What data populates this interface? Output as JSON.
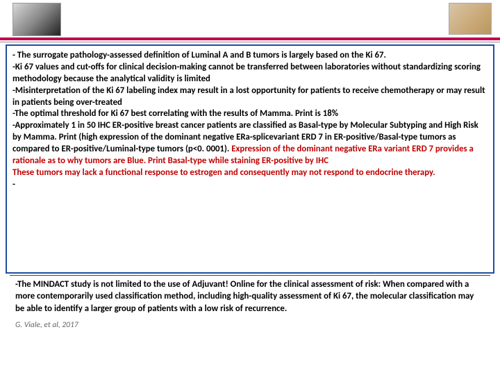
{
  "header": {
    "rule_color": "#c00050",
    "left_image_alt": "microscope-photo",
    "right_image_alt": "histology-slide"
  },
  "box1": {
    "p1": "- The surrogate pathology-assessed definition of Luminal A and B tumors is largely based on the Ki 67.",
    "p2": "-Ki 67 values and cut-offs for clinical decision-making cannot be transferred between laboratories without standardizing scoring methodology because the analytical validity is limited",
    "p3": "-Misinterpretation of the Ki 67 labeling index may result in a lost opportunity for patients to receive chemotherapy or may result in patients being over-treated",
    "p4": "-The optimal threshold for Ki 67 best  correlating with the results of Mamma. Print is 18%",
    "p5a": "-Approximately 1 in 50 IHC ER-positive breast cancer patients are classified as Basal-type by Molecular Subtyping and High Risk by Mamma. Print (high expression of the dominant negative ERa-splicevariant ERD 7 in ER-positive/Basal-type tumors as compared to ER-positive/Luminal-type tumors (p<0. 0001). ",
    "p5b": "Expression of the dominant negative ERa variant ERD 7 provides a rationale as to why tumors are Blue. Print Basal-type while staining ER-positive by IHC",
    "p6": "These tumors may lack a functional response to estrogen and consequently may not respond to endocrine therapy.",
    "p7": "-"
  },
  "box2": {
    "text": "-The MINDACT study is not limited to the use of Adjuvant! Online for the clinical assessment of risk: When compared with a more contemporarily used classification method, including high-quality assessment of Ki 67, the molecular classification may be able to identify a larger group of patients with a low risk of recurrence."
  },
  "citation": "G. Viale, et al, 2017",
  "style": {
    "body_font_size": 12.8,
    "font_weight": "bold",
    "text_color": "#000000",
    "highlight_color": "#c00000",
    "box_border_color": "#1f4e9c",
    "citation_color": "#666666"
  }
}
